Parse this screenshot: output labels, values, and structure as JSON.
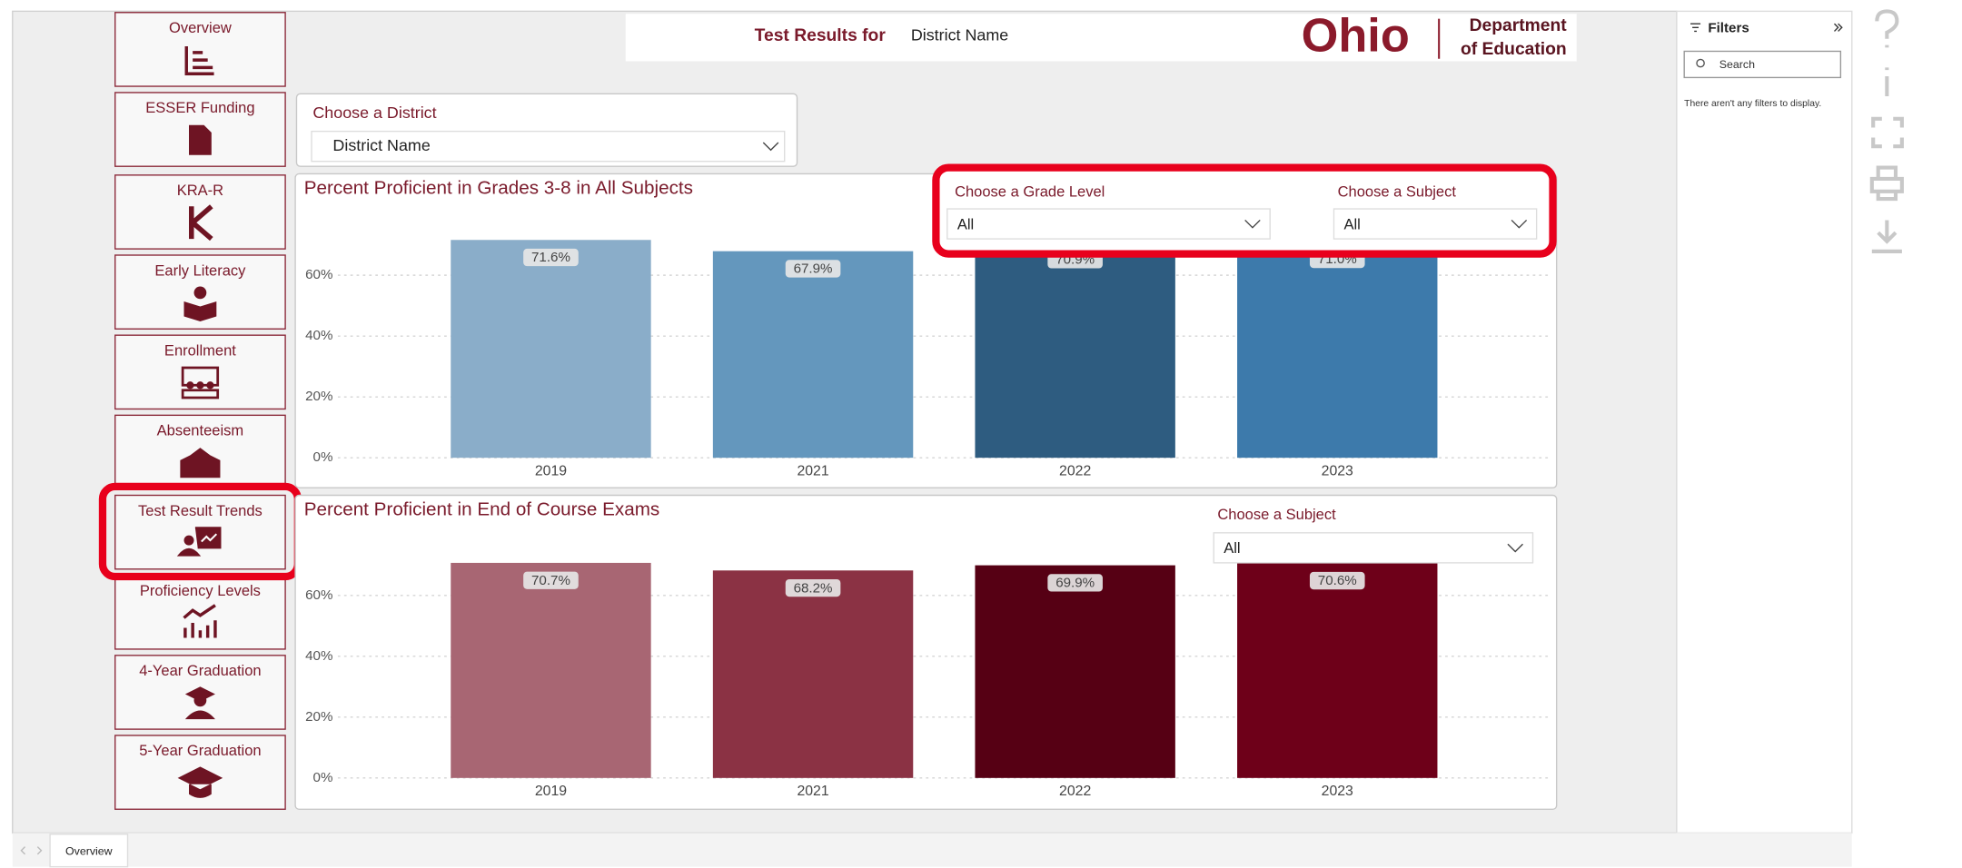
{
  "nav": [
    "Overview",
    "ESSER Funding",
    "KRA-R",
    "Early Literacy",
    "Enrollment",
    "Absenteeism",
    "Test Result Trends",
    "Proficiency Levels",
    "4-Year Graduation",
    "5-Year Graduation"
  ],
  "header": {
    "title": "Test Results for",
    "district": "District Name"
  },
  "logo": {
    "name": "Ohio",
    "line1": "Department",
    "line2": "of Education"
  },
  "district_slicer": {
    "label": "Choose a District",
    "value": "District Name"
  },
  "chart_data": [
    {
      "type": "bar",
      "title": "Percent Proficient in Grades 3-8 in All Subjects",
      "categories": [
        "2019",
        "2021",
        "2022",
        "2023"
      ],
      "values": [
        71.6,
        67.9,
        70.9,
        71.0
      ],
      "value_labels": [
        "71.6%",
        "67.9%",
        "70.9%",
        "71.0%"
      ],
      "colors": [
        "#8aadc9",
        "#6497bd",
        "#2e5c80",
        "#3d7aab"
      ],
      "ylim": [
        0,
        74
      ],
      "yticks": [
        {
          "value": 0,
          "label": "0%"
        },
        {
          "value": 20,
          "label": "20%"
        },
        {
          "value": 40,
          "label": "40%"
        },
        {
          "value": 60,
          "label": "60%"
        }
      ],
      "grid": true,
      "slicers": [
        {
          "label": "Choose a Grade Level",
          "value": "All"
        },
        {
          "label": "Choose a Subject",
          "value": "All"
        }
      ]
    },
    {
      "type": "bar",
      "title": "Percent Proficient in End of Course Exams",
      "categories": [
        "2019",
        "2021",
        "2022",
        "2023"
      ],
      "values": [
        70.7,
        68.2,
        69.9,
        70.6
      ],
      "value_labels": [
        "70.7%",
        "68.2%",
        "69.9%",
        "70.6%"
      ],
      "colors": [
        "#a86673",
        "#8b3244",
        "#560014",
        "#6e0019"
      ],
      "ylim": [
        0,
        74
      ],
      "yticks": [
        {
          "value": 0,
          "label": "0%"
        },
        {
          "value": 20,
          "label": "20%"
        },
        {
          "value": 40,
          "label": "40%"
        },
        {
          "value": 60,
          "label": "60%"
        }
      ],
      "grid": true,
      "slicers": [
        {
          "label": "Choose a Subject",
          "value": "All"
        }
      ]
    }
  ],
  "filters_pane": {
    "title": "Filters",
    "search": "Search",
    "empty": "There aren't any filters to display."
  },
  "tabs": [
    "Overview"
  ]
}
